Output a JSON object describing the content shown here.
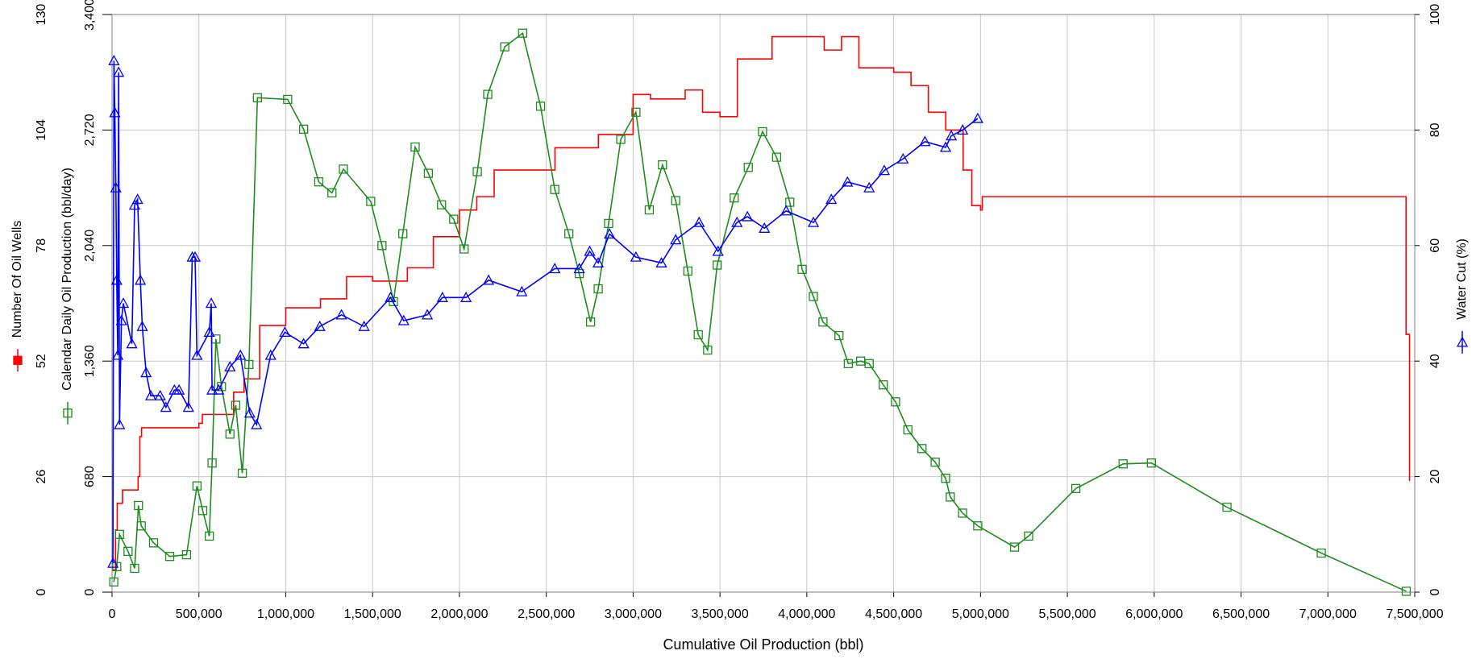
{
  "chart_data": {
    "type": "line",
    "xlabel": "Cumulative Oil Production (bbl)",
    "xlim": [
      0,
      7500000
    ],
    "xticks": [
      0,
      {
        "value": 500000,
        "label": "500,000"
      },
      {
        "value": 1000000,
        "label": "1,000,000"
      },
      {
        "value": 1500000,
        "label": "1,500,000"
      },
      {
        "value": 2000000,
        "label": "2,000,000"
      },
      {
        "value": 2500000,
        "label": "2,500,000"
      },
      {
        "value": 3000000,
        "label": "3,000,000"
      },
      {
        "value": 3500000,
        "label": "3,500,000"
      },
      {
        "value": 4000000,
        "label": "4,000,000"
      },
      {
        "value": 4500000,
        "label": "4,500,000"
      },
      {
        "value": 5000000,
        "label": "5,000,000"
      },
      {
        "value": 5500000,
        "label": "5,500,000"
      },
      {
        "value": 6000000,
        "label": "6,000,000"
      },
      {
        "value": 6500000,
        "label": "6,500,000"
      },
      {
        "value": 7000000,
        "label": "7,000,000"
      },
      {
        "value": 7500000,
        "label": "7,500,000"
      }
    ],
    "ylim": [
      0,
      130
    ],
    "yticks": [
      0,
      26,
      52,
      78,
      104,
      130
    ],
    "y3lim": [
      0,
      3400
    ],
    "y3ticks": [
      0,
      680,
      {
        "value": 1360,
        "label": "1,360"
      },
      {
        "value": 2040,
        "label": "2,040"
      },
      {
        "value": 2720,
        "label": "2,720"
      },
      {
        "value": 3400,
        "label": "3,400"
      }
    ],
    "y2lim": [
      0,
      100
    ],
    "y2ticks": [
      0,
      20,
      40,
      60,
      80,
      100
    ],
    "grid": true,
    "series": [
      {
        "name": "Number Of Oil Wells",
        "color": "#ff0000",
        "axis": "y",
        "marker": "square",
        "drawstyle": "steps-post",
        "x": [
          0,
          20000,
          30000,
          60000,
          150000,
          160000,
          170000,
          500000,
          520000,
          700000,
          760000,
          850000,
          1000000,
          1200000,
          1350000,
          1500000,
          1700000,
          1850000,
          2000000,
          2100000,
          2200000,
          2550000,
          2800000,
          3000000,
          3100000,
          3300000,
          3400000,
          3500000,
          3600000,
          3800000,
          4000000,
          4100000,
          4200000,
          4300000,
          4500000,
          4600000,
          4700000,
          4800000,
          4900000,
          4950000,
          5000000,
          5010000,
          5030000,
          7440000,
          7450000,
          7470000
        ],
        "values": [
          5,
          14,
          20,
          23,
          26,
          35,
          37,
          38,
          40,
          45,
          48,
          60,
          64,
          66,
          71,
          70,
          73,
          80,
          86,
          89,
          95,
          100,
          103,
          112,
          111,
          113,
          108,
          107,
          120,
          125,
          125,
          122,
          125,
          118,
          117,
          114,
          108,
          104,
          95,
          87,
          86,
          89,
          89,
          89,
          58,
          25
        ]
      },
      {
        "name": "Calendar Daily Oil Production (bbl/day)",
        "color": "#1e8c1e",
        "axis": "y3",
        "marker": "square",
        "x": [
          10000,
          27000,
          43000,
          92000,
          130000,
          152000,
          168000,
          239000,
          332000,
          429000,
          489000,
          522000,
          560000,
          576000,
          598000,
          630000,
          679000,
          712000,
          750000,
          788000,
          837000,
          1011000,
          1103000,
          1190000,
          1266000,
          1332000,
          1489000,
          1554000,
          1620000,
          1674000,
          1745000,
          1821000,
          1897000,
          1967000,
          2027000,
          2103000,
          2163000,
          2261000,
          2364000,
          2467000,
          2549000,
          2630000,
          2690000,
          2755000,
          2799000,
          2859000,
          2929000,
          3016000,
          3093000,
          3169000,
          3245000,
          3315000,
          3375000,
          3429000,
          3484000,
          3582000,
          3663000,
          3745000,
          3826000,
          3902000,
          3973000,
          4038000,
          4093000,
          4185000,
          4239000,
          4310000,
          4359000,
          4440000,
          4511000,
          4582000,
          4663000,
          4739000,
          4799000,
          4826000,
          4897000,
          4984000,
          5196000,
          5277000,
          5549000,
          5821000,
          5984000,
          6419000,
          6962000,
          7451000
        ],
        "values": [
          60,
          150,
          340,
          240,
          140,
          510,
          390,
          290,
          210,
          220,
          625,
          480,
          330,
          760,
          1490,
          1210,
          930,
          1100,
          700,
          1340,
          2910,
          2900,
          2725,
          2415,
          2350,
          2490,
          2300,
          2040,
          1710,
          2110,
          2620,
          2465,
          2280,
          2195,
          2020,
          2475,
          2930,
          3210,
          3290,
          2860,
          2370,
          2110,
          1875,
          1590,
          1785,
          2170,
          2665,
          2825,
          2250,
          2515,
          2305,
          1890,
          1515,
          1425,
          1925,
          2320,
          2500,
          2710,
          2560,
          2295,
          1900,
          1740,
          1590,
          1510,
          1345,
          1360,
          1345,
          1220,
          1120,
          955,
          845,
          765,
          670,
          560,
          465,
          390,
          265,
          330,
          610,
          755,
          760,
          500,
          230,
          5
        ]
      },
      {
        "name": "Water Cut (%)",
        "color": "#0000ff",
        "axis": "y2",
        "marker": "triangle",
        "x": [
          5000,
          11000,
          16000,
          22000,
          27000,
          33000,
          38000,
          43000,
          54000,
          65000,
          114000,
          130000,
          147000,
          163000,
          174000,
          196000,
          223000,
          277000,
          310000,
          359000,
          386000,
          440000,
          462000,
          478000,
          489000,
          560000,
          571000,
          576000,
          614000,
          679000,
          739000,
          793000,
          832000,
          913000,
          995000,
          1103000,
          1196000,
          1321000,
          1451000,
          1603000,
          1679000,
          1815000,
          1902000,
          2038000,
          2168000,
          2359000,
          2549000,
          2690000,
          2750000,
          2799000,
          2864000,
          3016000,
          3163000,
          3245000,
          3380000,
          3489000,
          3598000,
          3658000,
          3756000,
          3881000,
          4038000,
          4141000,
          4234000,
          4359000,
          4446000,
          4554000,
          4680000,
          4799000,
          4832000,
          4897000,
          4984000
        ],
        "values": [
          5,
          92,
          83,
          70,
          54,
          41,
          90,
          29,
          47,
          50,
          43,
          67,
          68,
          54,
          46,
          38,
          34,
          34,
          32,
          35,
          35,
          32,
          58,
          58,
          41,
          45,
          50,
          35,
          35,
          39,
          41,
          31,
          29,
          41,
          45,
          43,
          46,
          48,
          46,
          51,
          47,
          48,
          51,
          51,
          54,
          52,
          56,
          56,
          59,
          57,
          62,
          58,
          57,
          61,
          64,
          59,
          64,
          65,
          63,
          66,
          64,
          68,
          71,
          70,
          73,
          75,
          78,
          77,
          79,
          80,
          82
        ]
      }
    ]
  }
}
